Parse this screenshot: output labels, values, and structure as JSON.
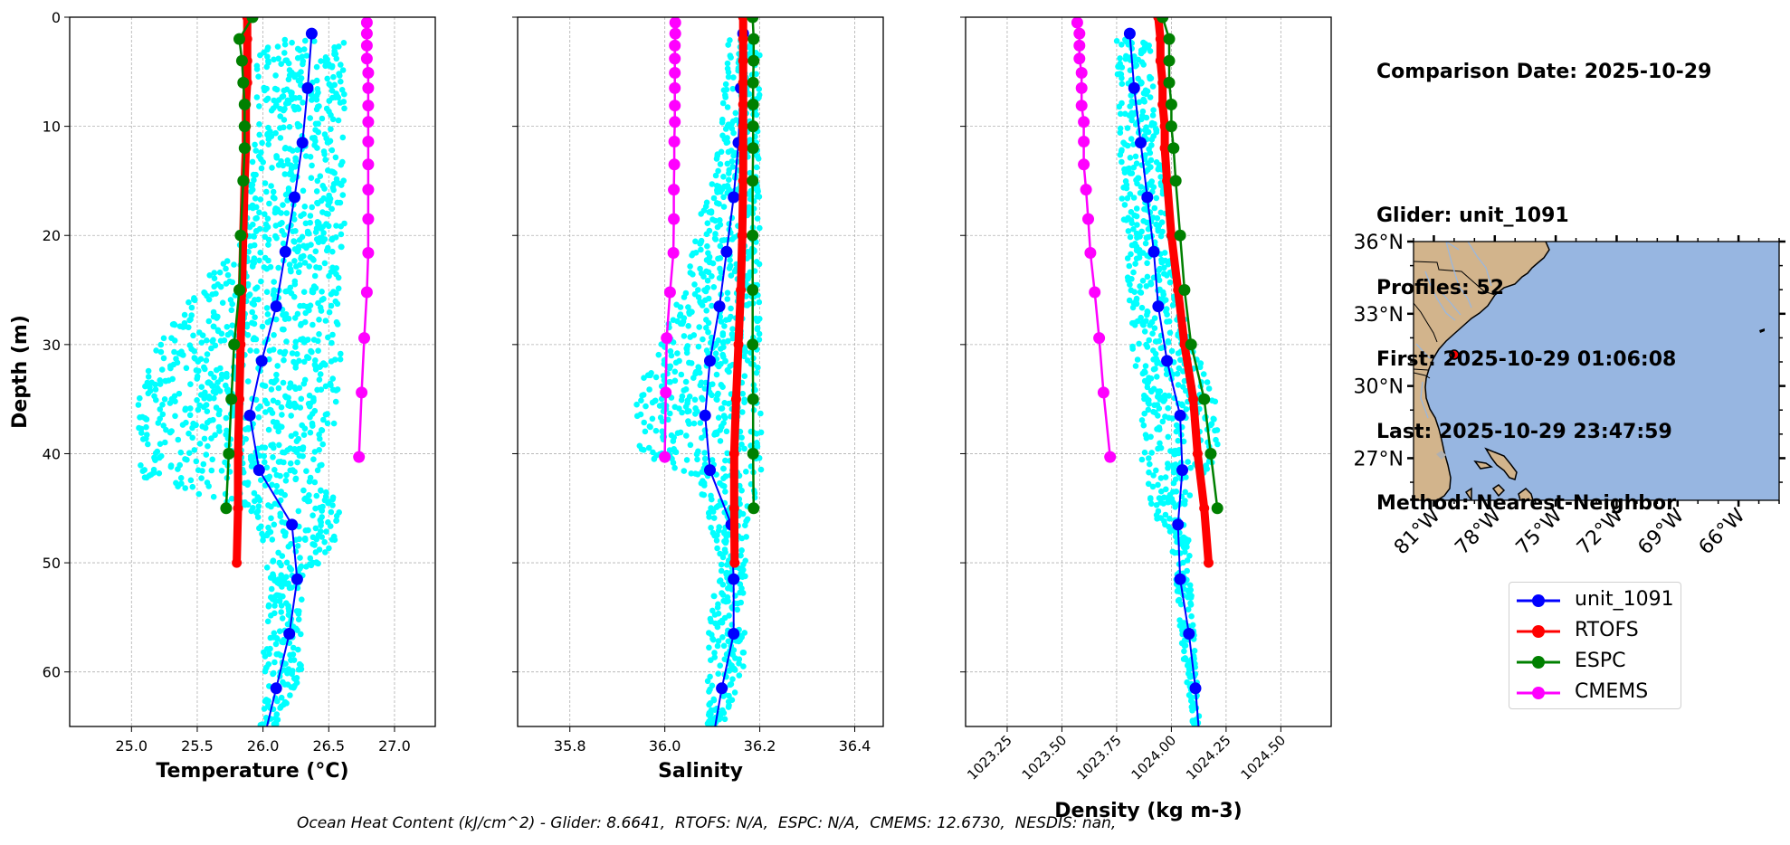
{
  "info": {
    "comparison_date": "Comparison Date: 2025-10-29",
    "glider": "Glider: unit_1091",
    "profiles": "Profiles: 52",
    "first": "First: 2025-10-29 01:06:08",
    "last": "Last: 2025-10-29 23:47:59",
    "method": "Method: Nearest-Neighbor"
  },
  "footer": {
    "ohc_text": "Ocean Heat Content (kJ/cm^2) - Glider: 8.6641,  RTOFS: N/A,  ESPC: N/A,  CMEMS: 12.6730,  NESDIS: nan,"
  },
  "legend": [
    {
      "label": "unit_1091",
      "color": "#0000ff"
    },
    {
      "label": "RTOFS",
      "color": "#ff0000"
    },
    {
      "label": "ESPC",
      "color": "#008000"
    },
    {
      "label": "CMEMS",
      "color": "#ff00ff"
    }
  ],
  "chart_data": [
    {
      "type": "line",
      "panel": "temperature",
      "xlabel": "Temperature (°C)",
      "ylabel": "Depth (m)",
      "xlim": [
        24.53,
        27.31
      ],
      "ylim": [
        65,
        0
      ],
      "xticks": [
        25.0,
        25.5,
        26.0,
        26.5,
        27.0
      ],
      "xtick_labels": [
        "25.0",
        "25.5",
        "26.0",
        "26.5",
        "27.0"
      ],
      "yticks": [
        0,
        10,
        20,
        30,
        40,
        50,
        60
      ],
      "ytick_labels": [
        "0",
        "10",
        "20",
        "30",
        "40",
        "50",
        "60"
      ],
      "grid": true,
      "raw_profiles": {
        "name": "unit_1091 raw profiles",
        "color": "#00ffff",
        "type": "scatter",
        "envelope": [
          [
            2,
            25.95,
            26.62
          ],
          [
            10,
            25.95,
            26.62
          ],
          [
            20,
            25.85,
            26.62
          ],
          [
            25,
            25.5,
            26.62
          ],
          [
            30,
            25.2,
            26.6
          ],
          [
            35,
            25.05,
            26.58
          ],
          [
            40,
            25.05,
            26.5
          ],
          [
            42,
            25.05,
            26.4
          ],
          [
            45,
            25.85,
            26.6
          ],
          [
            48,
            26.0,
            26.55
          ],
          [
            52,
            26.05,
            26.3
          ],
          [
            55,
            26.0,
            26.3
          ],
          [
            60,
            26.0,
            26.3
          ],
          [
            65,
            25.98,
            26.1
          ]
        ]
      },
      "series": [
        {
          "name": "unit_1091",
          "color": "#0000ff",
          "depth": [
            1.5,
            6.5,
            11.5,
            16.5,
            21.5,
            26.5,
            31.5,
            36.5,
            41.5,
            46.5,
            51.5,
            56.5,
            61.5,
            66.5
          ],
          "values": [
            26.37,
            26.34,
            26.3,
            26.24,
            26.17,
            26.1,
            25.99,
            25.9,
            25.97,
            26.22,
            26.26,
            26.2,
            26.1,
            26.0
          ]
        },
        {
          "name": "RTOFS",
          "color": "#ff0000",
          "depth": [
            0,
            2,
            4,
            6,
            8,
            10,
            12,
            15,
            20,
            25,
            30,
            35,
            40,
            45,
            50
          ],
          "values": [
            25.88,
            25.88,
            25.88,
            25.88,
            25.87,
            25.87,
            25.87,
            25.86,
            25.85,
            25.84,
            25.83,
            25.82,
            25.81,
            25.81,
            25.8
          ]
        },
        {
          "name": "ESPC",
          "color": "#008000",
          "depth": [
            0,
            2,
            4,
            6,
            8,
            10,
            12,
            15,
            20,
            25,
            30,
            35,
            40,
            45
          ],
          "values": [
            25.92,
            25.82,
            25.84,
            25.85,
            25.86,
            25.86,
            25.86,
            25.85,
            25.83,
            25.82,
            25.78,
            25.76,
            25.74,
            25.72
          ]
        },
        {
          "name": "CMEMS",
          "color": "#ff00ff",
          "depth": [
            0.5,
            1.5,
            2.6,
            3.8,
            5.1,
            6.5,
            8.1,
            9.6,
            11.4,
            13.5,
            15.8,
            18.5,
            21.6,
            25.2,
            29.4,
            34.4,
            40.3
          ],
          "values": [
            26.79,
            26.79,
            26.79,
            26.79,
            26.8,
            26.8,
            26.8,
            26.8,
            26.8,
            26.8,
            26.8,
            26.8,
            26.8,
            26.79,
            26.77,
            26.75,
            26.73
          ]
        }
      ]
    },
    {
      "type": "line",
      "panel": "salinity",
      "xlabel": "Salinity",
      "ylabel": "",
      "xlim": [
        35.69,
        36.46
      ],
      "ylim": [
        65,
        0
      ],
      "xticks": [
        35.8,
        36.0,
        36.2,
        36.4
      ],
      "xtick_labels": [
        "35.8",
        "36.0",
        "36.2",
        "36.4"
      ],
      "yticks": [
        0,
        10,
        20,
        30,
        40,
        50,
        60
      ],
      "grid": true,
      "raw_profiles": {
        "name": "unit_1091 raw profiles",
        "color": "#00ffff",
        "type": "scatter",
        "envelope": [
          [
            2,
            36.13,
            36.2
          ],
          [
            10,
            36.12,
            36.2
          ],
          [
            15,
            36.1,
            36.2
          ],
          [
            20,
            36.06,
            36.2
          ],
          [
            25,
            36.04,
            36.2
          ],
          [
            30,
            35.98,
            36.2
          ],
          [
            35,
            35.94,
            36.2
          ],
          [
            40,
            35.94,
            36.21
          ],
          [
            42,
            36.06,
            36.2
          ],
          [
            46,
            36.09,
            36.18
          ],
          [
            50,
            36.12,
            36.17
          ],
          [
            55,
            36.09,
            36.17
          ],
          [
            60,
            36.09,
            36.17
          ],
          [
            65,
            36.09,
            36.12
          ]
        ]
      },
      "series": [
        {
          "name": "unit_1091",
          "color": "#0000ff",
          "depth": [
            1.5,
            6.5,
            11.5,
            16.5,
            21.5,
            26.5,
            31.5,
            36.5,
            41.5,
            46.5,
            51.5,
            56.5,
            61.5,
            66.5
          ],
          "values": [
            36.165,
            36.16,
            36.155,
            36.145,
            36.13,
            36.115,
            36.095,
            36.085,
            36.095,
            36.14,
            36.145,
            36.145,
            36.12,
            36.1
          ]
        },
        {
          "name": "RTOFS",
          "color": "#ff0000",
          "depth": [
            0,
            2,
            4,
            6,
            8,
            10,
            12,
            15,
            20,
            25,
            30,
            35,
            40,
            45,
            50
          ],
          "values": [
            36.165,
            36.165,
            36.165,
            36.165,
            36.165,
            36.165,
            36.165,
            36.165,
            36.163,
            36.16,
            36.155,
            36.15,
            36.146,
            36.146,
            36.147
          ]
        },
        {
          "name": "ESPC",
          "color": "#008000",
          "depth": [
            0,
            2,
            4,
            6,
            8,
            10,
            12,
            15,
            20,
            25,
            30,
            35,
            40,
            45
          ],
          "values": [
            36.185,
            36.187,
            36.187,
            36.186,
            36.186,
            36.186,
            36.186,
            36.185,
            36.185,
            36.185,
            36.185,
            36.186,
            36.186,
            36.187
          ]
        },
        {
          "name": "CMEMS",
          "color": "#ff00ff",
          "depth": [
            0.5,
            1.5,
            2.6,
            3.8,
            5.1,
            6.5,
            8.1,
            9.6,
            11.4,
            13.5,
            15.8,
            18.5,
            21.6,
            25.2,
            29.4,
            34.4,
            40.3
          ],
          "values": [
            36.022,
            36.022,
            36.021,
            36.021,
            36.021,
            36.021,
            36.021,
            36.021,
            36.02,
            36.02,
            36.019,
            36.019,
            36.018,
            36.011,
            36.004,
            36.002,
            36.0
          ]
        }
      ]
    },
    {
      "type": "line",
      "panel": "density",
      "xlabel": "Density (kg m-3)",
      "ylabel": "",
      "xlim": [
        1023.06,
        1024.73
      ],
      "ylim": [
        65,
        0
      ],
      "xticks": [
        1023.25,
        1023.5,
        1023.75,
        1024.0,
        1024.25,
        1024.5
      ],
      "xtick_labels": [
        "1023.25",
        "1023.50",
        "1023.75",
        "1024.00",
        "1024.25",
        "1024.50"
      ],
      "yticks": [
        0,
        10,
        20,
        30,
        40,
        50,
        60
      ],
      "grid": true,
      "raw_profiles": {
        "name": "unit_1091 raw profiles",
        "color": "#00ffff",
        "type": "scatter",
        "envelope": [
          [
            2,
            1023.75,
            1023.9
          ],
          [
            10,
            1023.76,
            1023.93
          ],
          [
            20,
            1023.78,
            1024.0
          ],
          [
            25,
            1023.8,
            1024.02
          ],
          [
            30,
            1023.82,
            1024.1
          ],
          [
            35,
            1023.86,
            1024.2
          ],
          [
            40,
            1023.86,
            1024.22
          ],
          [
            45,
            1023.9,
            1024.05
          ],
          [
            48,
            1024.0,
            1024.08
          ],
          [
            52,
            1024.02,
            1024.09
          ],
          [
            58,
            1024.05,
            1024.11
          ],
          [
            65,
            1024.1,
            1024.13
          ]
        ]
      },
      "series": [
        {
          "name": "unit_1091",
          "color": "#0000ff",
          "depth": [
            1.5,
            6.5,
            11.5,
            16.5,
            21.5,
            26.5,
            31.5,
            36.5,
            41.5,
            46.5,
            51.5,
            56.5,
            61.5,
            66.5
          ],
          "values": [
            1023.81,
            1023.83,
            1023.86,
            1023.89,
            1023.92,
            1023.94,
            1023.98,
            1024.04,
            1024.05,
            1024.03,
            1024.04,
            1024.08,
            1024.11,
            1024.13
          ]
        },
        {
          "name": "RTOFS",
          "color": "#ff0000",
          "depth": [
            0,
            2,
            4,
            6,
            8,
            10,
            12,
            15,
            20,
            25,
            30,
            35,
            40,
            45,
            50
          ],
          "values": [
            1023.94,
            1023.95,
            1023.95,
            1023.96,
            1023.96,
            1023.97,
            1023.97,
            1023.98,
            1024.0,
            1024.03,
            1024.06,
            1024.1,
            1024.12,
            1024.15,
            1024.17
          ]
        },
        {
          "name": "ESPC",
          "color": "#008000",
          "depth": [
            0,
            2,
            4,
            6,
            8,
            10,
            12,
            15,
            20,
            25,
            30,
            35,
            40,
            45
          ],
          "values": [
            1023.96,
            1023.99,
            1023.99,
            1023.99,
            1024.0,
            1024.0,
            1024.01,
            1024.02,
            1024.04,
            1024.06,
            1024.09,
            1024.15,
            1024.18,
            1024.21
          ]
        },
        {
          "name": "CMEMS",
          "color": "#ff00ff",
          "depth": [
            0.5,
            1.5,
            2.6,
            3.8,
            5.1,
            6.5,
            8.1,
            9.6,
            11.4,
            13.5,
            15.8,
            18.5,
            21.6,
            25.2,
            29.4,
            34.4,
            40.3
          ],
          "values": [
            1023.57,
            1023.58,
            1023.58,
            1023.58,
            1023.59,
            1023.59,
            1023.59,
            1023.6,
            1023.6,
            1023.6,
            1023.61,
            1023.62,
            1023.63,
            1023.65,
            1023.67,
            1023.69,
            1023.72
          ]
        }
      ]
    },
    {
      "type": "map",
      "panel": "location",
      "lon_range": [
        -82.0,
        -64.0
      ],
      "lat_range": [
        25.25,
        36.0
      ],
      "lat_ticks": [
        36,
        33,
        30,
        27
      ],
      "lat_tick_labels": [
        "36°N",
        "33°N",
        "30°N",
        "27°N"
      ],
      "lon_ticks": [
        -81,
        -78,
        -75,
        -72,
        -69,
        -66
      ],
      "lon_tick_labels": [
        "81°W",
        "78°W",
        "75°W",
        "72°W",
        "69°W",
        "66°W"
      ],
      "land_color": "#d2b48c",
      "ocean_color": "#97b6e1",
      "glider_position": {
        "lon": -80.0,
        "lat": 31.3,
        "color": "#ff0000"
      }
    }
  ]
}
